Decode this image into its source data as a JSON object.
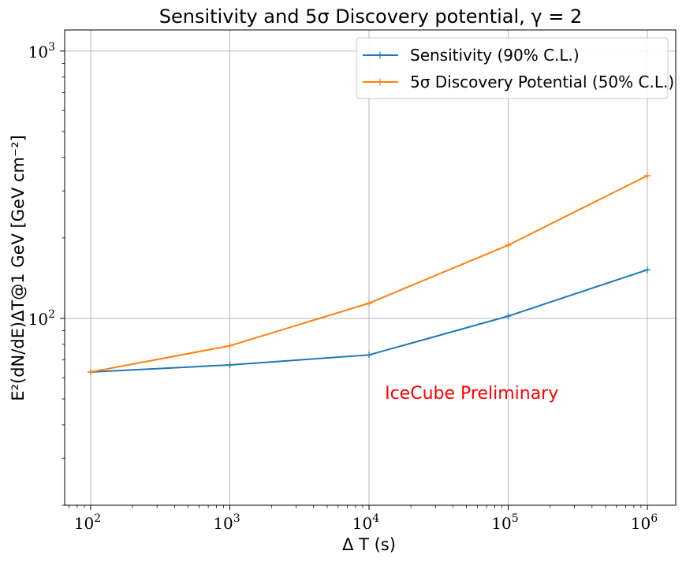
{
  "chart_data": {
    "type": "line",
    "title": "Sensitivity and 5σ Discovery potential, γ = 2",
    "xlabel": "Δ T (s)",
    "ylabel": "E²(dN/dE)ΔT@1 GeV [GeV cm⁻²]",
    "xscale": "log",
    "yscale": "log",
    "xlim": [
      65,
      1600000
    ],
    "ylim": [
      20,
      1200
    ],
    "grid": true,
    "legend_position": "top-right",
    "x": [
      100,
      1000,
      10000,
      100000,
      1000000
    ],
    "x_ticks": [
      {
        "value": 100,
        "base": "10",
        "exp": "2"
      },
      {
        "value": 1000,
        "base": "10",
        "exp": "3"
      },
      {
        "value": 10000,
        "base": "10",
        "exp": "4"
      },
      {
        "value": 100000,
        "base": "10",
        "exp": "5"
      },
      {
        "value": 1000000,
        "base": "10",
        "exp": "6"
      }
    ],
    "y_ticks": [
      {
        "value": 100,
        "base": "10",
        "exp": "2"
      },
      {
        "value": 1000,
        "base": "10",
        "exp": "3"
      }
    ],
    "series": [
      {
        "name": "Sensitivity (90% C.L.)",
        "color": "#1f77b4",
        "values": [
          63,
          67,
          73,
          102,
          152
        ]
      },
      {
        "name": "5σ Discovery Potential (50% C.L.)",
        "color": "#ff7f0e",
        "values": [
          63,
          79,
          114,
          188,
          342
        ]
      }
    ],
    "annotations": [
      {
        "text": "IceCube Preliminary",
        "x": 13000,
        "y": 50,
        "color": "#ff0000"
      }
    ]
  }
}
